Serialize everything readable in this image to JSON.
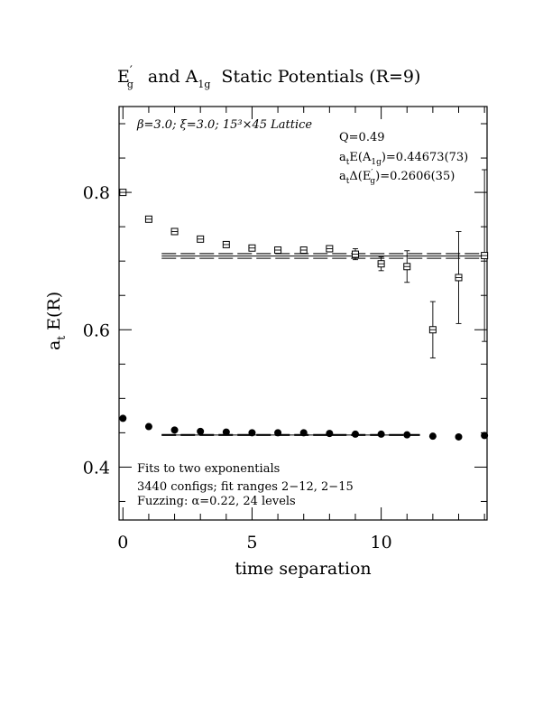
{
  "chart_data": {
    "type": "scatter",
    "title": {
      "main": "E",
      "main_sup": "′",
      "main_sub": "g",
      "mid": "and A",
      "mid_sub": "1g",
      "end": "Static Potentials (R=9)"
    },
    "xlabel": "time separation",
    "ylabel": {
      "main": "a",
      "sub": "t",
      "rest": "E(R)"
    },
    "xlim": [
      -0.15,
      14.1
    ],
    "ylim": [
      0.323,
      0.925
    ],
    "x_ticks": [
      0,
      5,
      10
    ],
    "y_ticks": [
      0.4,
      0.6,
      0.8
    ],
    "x_tick_labels": [
      "0",
      "5",
      "10"
    ],
    "y_tick_labels": [
      "0.4",
      "0.6",
      "0.8"
    ],
    "x_minor_step": 1,
    "y_minor_step": 0.05,
    "header_text": "β=3.0; ξ=3.0; 15³×45 Lattice",
    "fit_info": {
      "q": "Q=0.49",
      "a1g_main": "a",
      "a1g_sub": "t",
      "a1g_mid": "E(A",
      "a1g_sub2": "1g",
      "a1g_end": ")=0.44673(73)",
      "eg_main": "a",
      "eg_sub": "t",
      "eg_mid": "Δ(E",
      "eg_sup": "′",
      "eg_sub2": "g",
      "eg_end": ")=0.2606(35)"
    },
    "notes": [
      "Fits to two exponentials",
      "3440 configs; fit ranges 2−12, 2−15",
      "Fuzzing: α=0.22, 24 levels"
    ],
    "series": [
      {
        "marker": "filled-circle",
        "x": [
          0,
          1,
          2,
          3,
          4,
          5,
          6,
          7,
          8,
          9,
          10,
          11,
          12,
          13,
          14
        ],
        "y": [
          0.471,
          0.459,
          0.454,
          0.452,
          0.451,
          0.45,
          0.45,
          0.45,
          0.449,
          0.448,
          0.448,
          0.447,
          0.445,
          0.444,
          0.446
        ],
        "err": [
          0.002,
          0.002,
          0.002,
          0.002,
          0.002,
          0.002,
          0.002,
          0.002,
          0.002,
          0.002,
          0.002,
          0.002,
          0.002,
          0.002,
          0.002
        ]
      },
      {
        "marker": "open-square",
        "x": [
          0,
          1,
          2,
          3,
          4,
          5,
          6,
          7,
          8,
          9,
          10,
          11,
          12,
          13,
          14
        ],
        "y": [
          0.8,
          0.761,
          0.743,
          0.732,
          0.724,
          0.719,
          0.716,
          0.716,
          0.718,
          0.71,
          0.696,
          0.692,
          0.6,
          0.676,
          0.708
        ],
        "err": [
          0.002,
          0.002,
          0.002,
          0.003,
          0.003,
          0.003,
          0.004,
          0.004,
          0.005,
          0.008,
          0.01,
          0.023,
          0.041,
          0.067,
          0.125
        ]
      }
    ],
    "fits": [
      {
        "x_range": [
          1.5,
          11.5
        ],
        "value": 0.44673,
        "band": [
          0.4461,
          0.4474
        ]
      },
      {
        "x_range": [
          1.5,
          14.0
        ],
        "value": 0.7073,
        "band": [
          0.704,
          0.7108
        ]
      }
    ]
  }
}
